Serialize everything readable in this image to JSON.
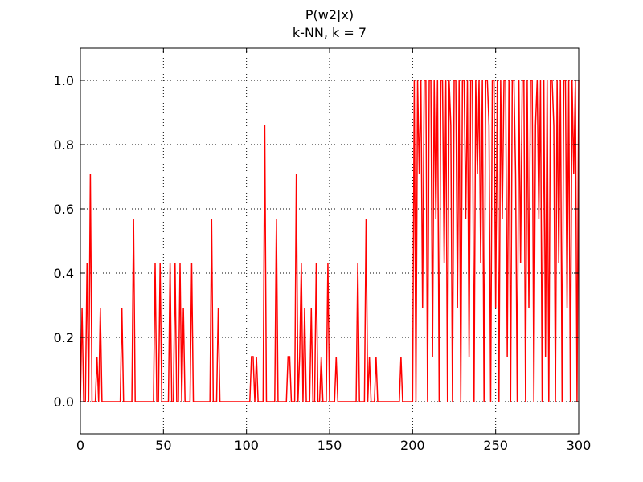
{
  "chart_data": {
    "type": "line",
    "title": "P(w2|x)",
    "subtitle": "k-NN, k = 7",
    "x": [
      0,
      1,
      2,
      3,
      4,
      5,
      6,
      7,
      8,
      9,
      10,
      11,
      12,
      13,
      14,
      15,
      16,
      17,
      18,
      19,
      20,
      21,
      22,
      23,
      24,
      25,
      26,
      27,
      28,
      29,
      30,
      31,
      32,
      33,
      34,
      35,
      36,
      37,
      38,
      39,
      40,
      41,
      42,
      43,
      44,
      45,
      46,
      47,
      48,
      49,
      50,
      51,
      52,
      53,
      54,
      55,
      56,
      57,
      58,
      59,
      60,
      61,
      62,
      63,
      64,
      65,
      66,
      67,
      68,
      69,
      70,
      71,
      72,
      73,
      74,
      75,
      76,
      77,
      78,
      79,
      80,
      81,
      82,
      83,
      84,
      85,
      86,
      87,
      88,
      89,
      90,
      91,
      92,
      93,
      94,
      95,
      96,
      97,
      98,
      99,
      100,
      101,
      102,
      103,
      104,
      105,
      106,
      107,
      108,
      109,
      110,
      111,
      112,
      113,
      114,
      115,
      116,
      117,
      118,
      119,
      120,
      121,
      122,
      123,
      124,
      125,
      126,
      127,
      128,
      129,
      130,
      131,
      132,
      133,
      134,
      135,
      136,
      137,
      138,
      139,
      140,
      141,
      142,
      143,
      144,
      145,
      146,
      147,
      148,
      149,
      150,
      151,
      152,
      153,
      154,
      155,
      156,
      157,
      158,
      159,
      160,
      161,
      162,
      163,
      164,
      165,
      166,
      167,
      168,
      169,
      170,
      171,
      172,
      173,
      174,
      175,
      176,
      177,
      178,
      179,
      180,
      181,
      182,
      183,
      184,
      185,
      186,
      187,
      188,
      189,
      190,
      191,
      192,
      193,
      194,
      195,
      196,
      197,
      198,
      199,
      200,
      201,
      202,
      203,
      204,
      205,
      206,
      207,
      208,
      209,
      210,
      211,
      212,
      213,
      214,
      215,
      216,
      217,
      218,
      219,
      220,
      221,
      222,
      223,
      224,
      225,
      226,
      227,
      228,
      229,
      230,
      231,
      232,
      233,
      234,
      235,
      236,
      237,
      238,
      239,
      240,
      241,
      242,
      243,
      244,
      245,
      246,
      247,
      248,
      249,
      250,
      251,
      252,
      253,
      254,
      255,
      256,
      257,
      258,
      259,
      260,
      261,
      262,
      263,
      264,
      265,
      266,
      267,
      268,
      269,
      270,
      271,
      272,
      273,
      274,
      275,
      276,
      277,
      278,
      279,
      280,
      281,
      282,
      283,
      284,
      285,
      286,
      287,
      288,
      289,
      290,
      291,
      292,
      293,
      294,
      295,
      296,
      297,
      298,
      299,
      300
    ],
    "series": [
      {
        "color": "#ff0000",
        "values": [
          0,
          0.29,
          0,
          0,
          0.43,
          0,
          0.71,
          0,
          0,
          0,
          0.14,
          0,
          0.29,
          0,
          0,
          0,
          0,
          0,
          0,
          0,
          0,
          0,
          0,
          0,
          0,
          0.29,
          0,
          0,
          0,
          0,
          0,
          0,
          0.57,
          0,
          0,
          0,
          0,
          0,
          0,
          0,
          0,
          0,
          0,
          0,
          0,
          0.43,
          0,
          0,
          0.43,
          0,
          0,
          0,
          0,
          0,
          0.43,
          0,
          0,
          0.43,
          0,
          0,
          0.43,
          0,
          0.29,
          0,
          0,
          0,
          0,
          0.43,
          0,
          0,
          0,
          0,
          0,
          0,
          0,
          0,
          0,
          0,
          0,
          0.57,
          0,
          0,
          0,
          0.29,
          0,
          0,
          0,
          0,
          0,
          0,
          0,
          0,
          0,
          0,
          0,
          0,
          0,
          0,
          0,
          0,
          0,
          0,
          0,
          0.14,
          0.14,
          0,
          0.14,
          0,
          0,
          0,
          0,
          0.86,
          0,
          0,
          0,
          0,
          0,
          0,
          0.57,
          0,
          0,
          0,
          0,
          0,
          0,
          0.14,
          0.14,
          0,
          0,
          0,
          0.71,
          0,
          0.14,
          0.43,
          0,
          0.29,
          0,
          0,
          0,
          0.29,
          0,
          0,
          0.43,
          0,
          0,
          0.14,
          0,
          0,
          0,
          0.43,
          0,
          0,
          0,
          0,
          0.14,
          0,
          0,
          0,
          0,
          0,
          0,
          0,
          0,
          0,
          0,
          0,
          0,
          0.43,
          0,
          0,
          0,
          0,
          0.57,
          0,
          0.14,
          0,
          0,
          0,
          0.14,
          0,
          0,
          0,
          0,
          0,
          0,
          0,
          0,
          0,
          0,
          0,
          0,
          0,
          0,
          0.14,
          0,
          0,
          0,
          0,
          0,
          0,
          0,
          1,
          0,
          1,
          0.71,
          1,
          0.29,
          1,
          1,
          0,
          1,
          1,
          0.14,
          1,
          0.57,
          1,
          0,
          1,
          1,
          0.43,
          1,
          0,
          1,
          0.86,
          0,
          1,
          1,
          0.29,
          1,
          0,
          1,
          1,
          0.57,
          1,
          0.14,
          1,
          1,
          0,
          1,
          0.71,
          1,
          0.43,
          1,
          0,
          1,
          1,
          0.86,
          0,
          1,
          1,
          0.29,
          1,
          0,
          1,
          0.57,
          1,
          1,
          0.14,
          1,
          0,
          1,
          1,
          0.71,
          0,
          1,
          0.43,
          1,
          1,
          0,
          1,
          0.29,
          1,
          1,
          0,
          0.86,
          1,
          0.57,
          1,
          0,
          1,
          0.14,
          1,
          0,
          1,
          1,
          0.86,
          0,
          1,
          0.43,
          1,
          0,
          1,
          1,
          0.29,
          1,
          0,
          1,
          0.71,
          1,
          0,
          1
        ]
      }
    ],
    "xlim": [
      0,
      300
    ],
    "xticks": [
      0,
      50,
      100,
      150,
      200,
      250,
      300
    ],
    "ylim": [
      -0.1,
      1.1
    ],
    "yticks": [
      {
        "value": 0,
        "label": "0.0"
      },
      0.2,
      0.4,
      0.6,
      0.8,
      {
        "value": 1,
        "label": "1.0"
      }
    ],
    "grid": true
  }
}
